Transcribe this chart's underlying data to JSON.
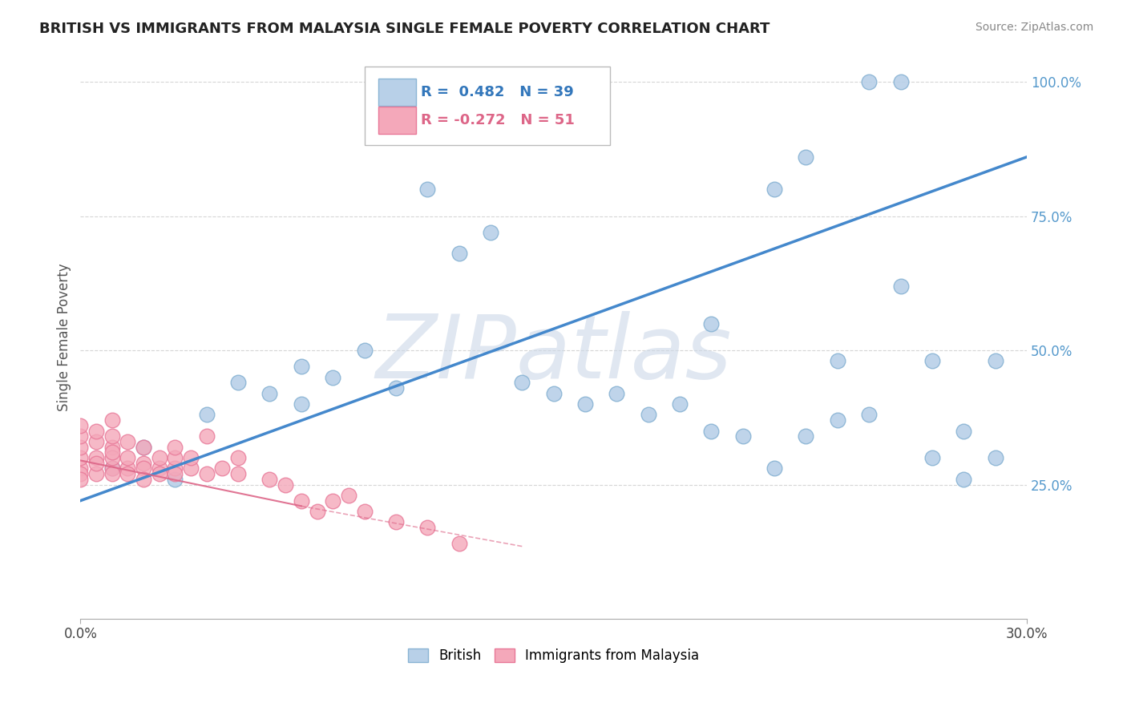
{
  "title": "BRITISH VS IMMIGRANTS FROM MALAYSIA SINGLE FEMALE POVERTY CORRELATION CHART",
  "source_text": "Source: ZipAtlas.com",
  "ylabel": "Single Female Poverty",
  "xlim": [
    0.0,
    0.3
  ],
  "ylim": [
    0.0,
    1.05
  ],
  "ytick_labels": [
    "25.0%",
    "50.0%",
    "75.0%",
    "100.0%"
  ],
  "ytick_positions": [
    0.25,
    0.5,
    0.75,
    1.0
  ],
  "blue_R": 0.482,
  "blue_N": 39,
  "pink_R": -0.272,
  "pink_N": 51,
  "blue_color": "#b8d0e8",
  "blue_edge_color": "#8ab4d4",
  "pink_color": "#f4a8ba",
  "pink_edge_color": "#e87898",
  "blue_line_color": "#4488cc",
  "pink_line_color": "#dd6688",
  "watermark_color": "#ccd8e8",
  "watermark_text": "ZIPatlas",
  "legend_blue_label": "British",
  "legend_pink_label": "Immigrants from Malaysia",
  "blue_scatter_x": [
    0.01,
    0.02,
    0.03,
    0.04,
    0.05,
    0.06,
    0.07,
    0.07,
    0.08,
    0.09,
    0.1,
    0.11,
    0.12,
    0.13,
    0.14,
    0.15,
    0.16,
    0.17,
    0.18,
    0.19,
    0.2,
    0.2,
    0.21,
    0.22,
    0.22,
    0.23,
    0.23,
    0.24,
    0.24,
    0.25,
    0.25,
    0.26,
    0.26,
    0.27,
    0.27,
    0.28,
    0.28,
    0.29,
    0.29
  ],
  "blue_scatter_y": [
    0.28,
    0.32,
    0.26,
    0.38,
    0.44,
    0.42,
    0.47,
    0.4,
    0.45,
    0.5,
    0.43,
    0.8,
    0.68,
    0.72,
    0.44,
    0.42,
    0.4,
    0.42,
    0.38,
    0.4,
    0.35,
    0.55,
    0.34,
    0.28,
    0.8,
    0.86,
    0.34,
    0.48,
    0.37,
    0.38,
    1.0,
    1.0,
    0.62,
    0.48,
    0.3,
    0.35,
    0.26,
    0.48,
    0.3
  ],
  "pink_scatter_x": [
    0.0,
    0.0,
    0.0,
    0.0,
    0.0,
    0.0,
    0.0,
    0.005,
    0.005,
    0.005,
    0.005,
    0.005,
    0.01,
    0.01,
    0.01,
    0.01,
    0.01,
    0.01,
    0.01,
    0.015,
    0.015,
    0.015,
    0.015,
    0.02,
    0.02,
    0.02,
    0.02,
    0.025,
    0.025,
    0.025,
    0.03,
    0.03,
    0.03,
    0.03,
    0.035,
    0.035,
    0.04,
    0.04,
    0.045,
    0.05,
    0.05,
    0.06,
    0.065,
    0.07,
    0.075,
    0.08,
    0.085,
    0.09,
    0.1,
    0.11,
    0.12
  ],
  "pink_scatter_y": [
    0.28,
    0.3,
    0.32,
    0.34,
    0.36,
    0.27,
    0.26,
    0.3,
    0.27,
    0.33,
    0.29,
    0.35,
    0.28,
    0.32,
    0.3,
    0.27,
    0.34,
    0.37,
    0.31,
    0.28,
    0.3,
    0.27,
    0.33,
    0.29,
    0.32,
    0.28,
    0.26,
    0.28,
    0.3,
    0.27,
    0.28,
    0.3,
    0.27,
    0.32,
    0.28,
    0.3,
    0.27,
    0.34,
    0.28,
    0.3,
    0.27,
    0.26,
    0.25,
    0.22,
    0.2,
    0.22,
    0.23,
    0.2,
    0.18,
    0.17,
    0.14
  ],
  "grid_color": "#cccccc",
  "background_color": "#ffffff",
  "marker_size": 180,
  "blue_line_x0": 0.0,
  "blue_line_y0": 0.22,
  "blue_line_x1": 0.3,
  "blue_line_y1": 0.86,
  "pink_line_x0": 0.0,
  "pink_line_y0": 0.295,
  "pink_line_x1": 0.14,
  "pink_line_y1": 0.135
}
